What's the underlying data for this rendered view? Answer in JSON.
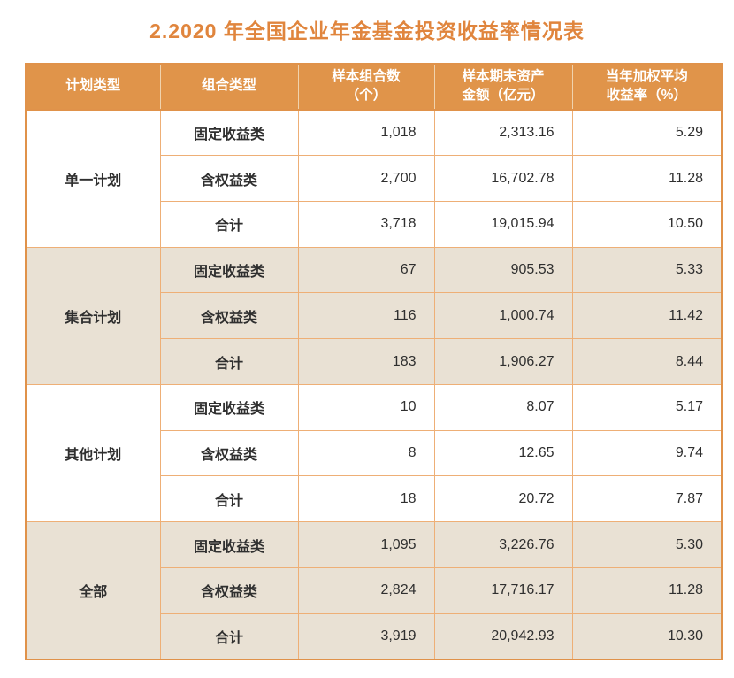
{
  "title": "2.2020 年全国企业年金基金投资收益率情况表",
  "colors": {
    "accent_orange": "#e0924a",
    "header_bg": "#e0944a",
    "group_tan_bg": "#e9e1d4",
    "inner_border": "#eeaf76",
    "text": "#2f2f2f"
  },
  "table": {
    "headers": [
      "计划类型",
      "组合类型",
      "样本组合数\n（个）",
      "样本期末资产\n金额（亿元）",
      "当年加权平均\n收益率（%）"
    ],
    "groups": [
      {
        "plan": "单一计划",
        "rows": [
          {
            "type": "固定收益类",
            "count": "1,018",
            "assets": "2,313.16",
            "return": "5.29"
          },
          {
            "type": "含权益类",
            "count": "2,700",
            "assets": "16,702.78",
            "return": "11.28"
          },
          {
            "type": "合计",
            "count": "3,718",
            "assets": "19,015.94",
            "return": "10.50"
          }
        ]
      },
      {
        "plan": "集合计划",
        "rows": [
          {
            "type": "固定收益类",
            "count": "67",
            "assets": "905.53",
            "return": "5.33"
          },
          {
            "type": "含权益类",
            "count": "116",
            "assets": "1,000.74",
            "return": "11.42"
          },
          {
            "type": "合计",
            "count": "183",
            "assets": "1,906.27",
            "return": "8.44"
          }
        ]
      },
      {
        "plan": "其他计划",
        "rows": [
          {
            "type": "固定收益类",
            "count": "10",
            "assets": "8.07",
            "return": "5.17"
          },
          {
            "type": "含权益类",
            "count": "8",
            "assets": "12.65",
            "return": "9.74"
          },
          {
            "type": "合计",
            "count": "18",
            "assets": "20.72",
            "return": "7.87"
          }
        ]
      },
      {
        "plan": "全部",
        "rows": [
          {
            "type": "固定收益类",
            "count": "1,095",
            "assets": "3,226.76",
            "return": "5.30"
          },
          {
            "type": "含权益类",
            "count": "2,824",
            "assets": "17,716.17",
            "return": "11.28"
          },
          {
            "type": "合计",
            "count": "3,919",
            "assets": "20,942.93",
            "return": "10.30"
          }
        ]
      }
    ]
  }
}
